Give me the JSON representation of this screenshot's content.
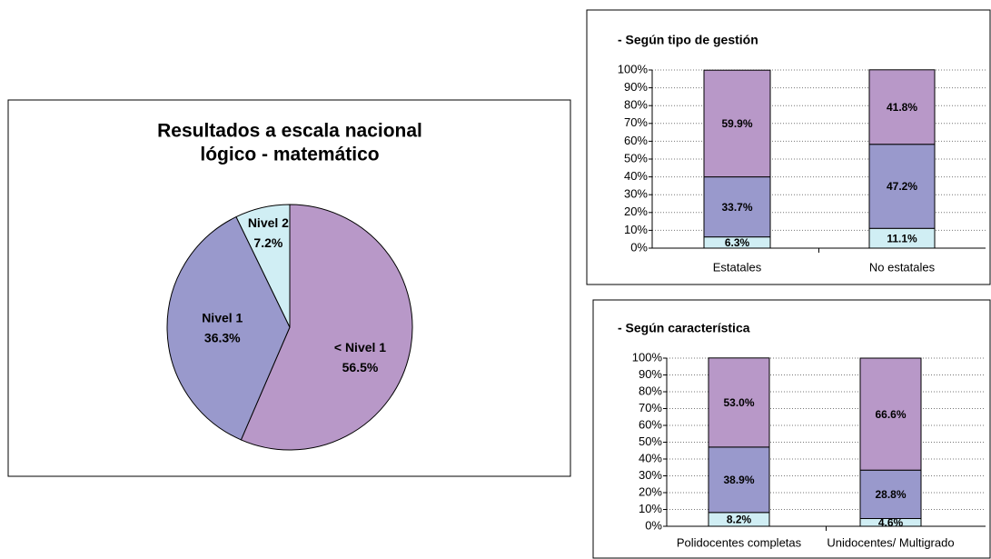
{
  "chart_data": [
    {
      "type": "pie",
      "title": [
        "Resultados a escala nacional",
        "lógico - matemático"
      ],
      "categories": [
        "< Nivel 1",
        "Nivel 1",
        "Nivel 2"
      ],
      "values": [
        56.5,
        36.3,
        7.2
      ],
      "value_labels": [
        "56.5%",
        "36.3%",
        "7.2%"
      ],
      "colors": [
        "#b898c8",
        "#9999cc",
        "#d0eef4"
      ]
    },
    {
      "type": "stacked_bar",
      "title": "- Según tipo de gestión",
      "categories": [
        "Estatales",
        "No estatales"
      ],
      "series": [
        {
          "color": "#d0eef4",
          "values": [
            6.3,
            11.1
          ],
          "value_labels": [
            "6.3%",
            "11.1%"
          ]
        },
        {
          "color": "#9999cc",
          "values": [
            33.7,
            47.2
          ],
          "value_labels": [
            "33.7%",
            "47.2%"
          ]
        },
        {
          "color": "#b898c8",
          "values": [
            59.9,
            41.8
          ],
          "value_labels": [
            "59.9%",
            "41.8%"
          ]
        }
      ],
      "ylim": [
        0,
        100
      ],
      "yticks": [
        {
          "value": 0,
          "label": "0%"
        },
        {
          "value": 10,
          "label": "10%"
        },
        {
          "value": 20,
          "label": "20%"
        },
        {
          "value": 30,
          "label": "30%"
        },
        {
          "value": 40,
          "label": "40%"
        },
        {
          "value": 50,
          "label": "50%"
        },
        {
          "value": 60,
          "label": "60%"
        },
        {
          "value": 70,
          "label": "70%"
        },
        {
          "value": 80,
          "label": "80%"
        },
        {
          "value": 90,
          "label": "90%"
        },
        {
          "value": 100,
          "label": "100%"
        }
      ],
      "grid": true
    },
    {
      "type": "stacked_bar",
      "title": "- Según característica",
      "categories": [
        "Polidocentes completas",
        "Unidocentes/ Multigrado"
      ],
      "series": [
        {
          "color": "#d0eef4",
          "values": [
            8.2,
            4.6
          ],
          "value_labels": [
            "8.2%",
            "4.6%"
          ]
        },
        {
          "color": "#9999cc",
          "values": [
            38.9,
            28.8
          ],
          "value_labels": [
            "38.9%",
            "28.8%"
          ]
        },
        {
          "color": "#b898c8",
          "values": [
            53,
            66.6
          ],
          "value_labels": [
            "53.0%",
            "66.6%"
          ]
        }
      ],
      "ylim": [
        0,
        100
      ],
      "yticks": [
        {
          "value": 0,
          "label": "0%"
        },
        {
          "value": 10,
          "label": "10%"
        },
        {
          "value": 20,
          "label": "20%"
        },
        {
          "value": 30,
          "label": "30%"
        },
        {
          "value": 40,
          "label": "40%"
        },
        {
          "value": 50,
          "label": "50%"
        },
        {
          "value": 60,
          "label": "60%"
        },
        {
          "value": 70,
          "label": "70%"
        },
        {
          "value": 80,
          "label": "80%"
        },
        {
          "value": 90,
          "label": "90%"
        },
        {
          "value": 100,
          "label": "100%"
        }
      ],
      "grid": true
    }
  ]
}
